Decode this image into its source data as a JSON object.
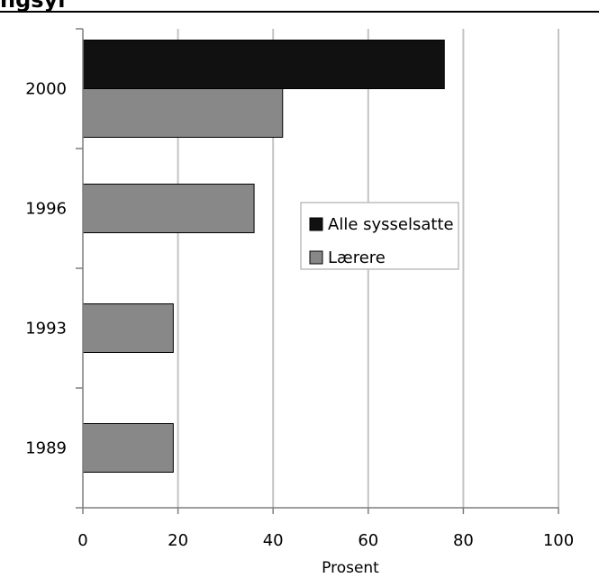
{
  "page": {
    "title": "ngsyl"
  },
  "chart_data": {
    "type": "bar",
    "orientation": "horizontal",
    "categories": [
      "2000",
      "1996",
      "1993",
      "1989"
    ],
    "series": [
      {
        "name": "Alle sysselsatte",
        "color": "#111111",
        "values": [
          76,
          null,
          null,
          null
        ]
      },
      {
        "name": "Lærere",
        "color": "#888888",
        "values": [
          42,
          36,
          19,
          19
        ]
      }
    ],
    "xlabel": "Prosent",
    "ylabel": "",
    "xlim": [
      0,
      100
    ],
    "xticks": [
      0,
      20,
      40,
      60,
      80,
      100
    ],
    "grid": true,
    "legend": "center-right"
  }
}
